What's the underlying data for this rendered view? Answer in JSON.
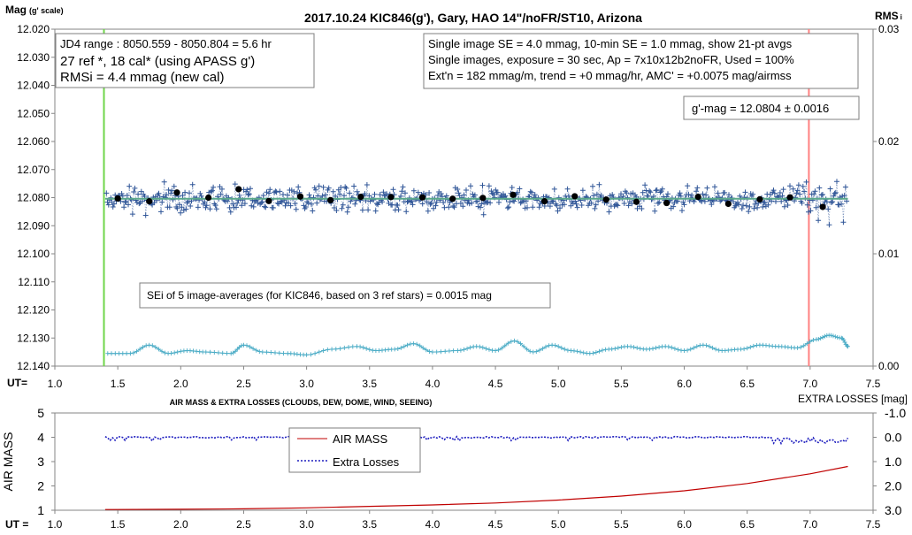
{
  "colors": {
    "axis": "#868686",
    "grid": "#d9d9d9",
    "lc_pts": "#2f5597",
    "mean_line": "#5aa88a",
    "avg_dots": "#000000",
    "sei_pts": "#4bacc6",
    "start_line": "#6fd64a",
    "end_line": "#ff8080",
    "airmass": "#c00000",
    "extra": "#1f1fbf"
  },
  "chart_data": [
    {
      "type": "scatter",
      "title": "2017.10.24  KIC846(g'),  Gary, HAO  14\"/noFR/ST10,  Arizona",
      "ylabel_left": "Mag",
      "ylabel_left_unit": "(g' scale)",
      "ylabel_right": "RMS",
      "ylabel_right_suffix": "i",
      "xlabel": "UT=",
      "xlim": [
        1.0,
        7.5
      ],
      "ylim_left": [
        12.14,
        12.02
      ],
      "ylim_right": [
        0.0,
        0.03
      ],
      "x_ticks": [
        "1.0",
        "1.5",
        "2.0",
        "2.5",
        "3.0",
        "3.5",
        "4.0",
        "4.5",
        "5.0",
        "5.5",
        "6.0",
        "6.5",
        "7.0",
        "7.5"
      ],
      "y_ticks_left": [
        "12.020",
        "12.030",
        "12.040",
        "12.050",
        "12.060",
        "12.070",
        "12.080",
        "12.090",
        "12.100",
        "12.110",
        "12.120",
        "12.130",
        "12.140"
      ],
      "y_ticks_right": [
        "0.03",
        "0.02",
        "0.01",
        "0.00"
      ],
      "grid": false,
      "vertical_markers": [
        {
          "x": 1.39,
          "color": "start_line"
        },
        {
          "x": 6.99,
          "color": "end_line"
        }
      ],
      "mean_level": 12.0804,
      "annotations": {
        "box_left": [
          "JD4 range : 8050.559 - 8050.804 =  5.6  hr",
          "27 ref *, 18 cal* (using APASS g')",
          "RMSi = 4.4 mmag (new cal)"
        ],
        "box_right": [
          "Single image SE = 4.0 mmag, 10-min SE = 1.0 mmag, show  21-pt avgs",
          "Single images, exposure = 30 sec, Ap = 7x10x12b2noFR,  Used = 100%",
          "Ext'n = 182 mmag/m, trend =  +0 mmag/hr, AMC' = +0.0075 mag/airmss"
        ],
        "gmag_box": "g'-mag = 12.0804 ± 0.0016",
        "sei_box": "SEi of 5 image-averages (for KIC846, based on 3 ref stars) = 0.0015  mag"
      },
      "series": [
        {
          "name": "21-pt avgs",
          "x": [
            1.5,
            1.75,
            1.97,
            2.22,
            2.46,
            2.7,
            2.95,
            3.19,
            3.43,
            3.67,
            3.92,
            4.16,
            4.4,
            4.64,
            4.89,
            5.13,
            5.38,
            5.62,
            5.86,
            6.11,
            6.35,
            6.6,
            6.84,
            7.1
          ],
          "y": [
            12.0803,
            12.0813,
            12.0782,
            12.08,
            12.077,
            12.0812,
            12.0796,
            12.0809,
            12.0797,
            12.0798,
            12.0799,
            12.0804,
            12.0801,
            12.079,
            12.0813,
            12.0795,
            12.0807,
            12.0815,
            12.0819,
            12.0797,
            12.0822,
            12.0806,
            12.0799,
            12.0833
          ]
        }
      ],
      "sei_curve": {
        "x": [
          1.42,
          1.6,
          1.75,
          1.9,
          2.05,
          2.2,
          2.4,
          2.5,
          2.65,
          2.85,
          3.0,
          3.2,
          3.4,
          3.55,
          3.7,
          3.85,
          4.0,
          4.2,
          4.35,
          4.5,
          4.65,
          4.8,
          4.95,
          5.1,
          5.25,
          5.4,
          5.55,
          5.7,
          5.85,
          6.0,
          6.15,
          6.3,
          6.45,
          6.6,
          6.75,
          6.9,
          7.05,
          7.15,
          7.25,
          7.3
        ],
        "y": [
          12.1355,
          12.1355,
          12.1325,
          12.1355,
          12.1345,
          12.135,
          12.1355,
          12.1325,
          12.135,
          12.1355,
          12.136,
          12.134,
          12.133,
          12.1345,
          12.134,
          12.132,
          12.135,
          12.1345,
          12.133,
          12.1345,
          12.131,
          12.135,
          12.1325,
          12.1345,
          12.1355,
          12.134,
          12.133,
          12.134,
          12.133,
          12.1345,
          12.1325,
          12.1345,
          12.134,
          12.1325,
          12.133,
          12.1335,
          12.1305,
          12.129,
          12.13,
          12.133
        ]
      }
    },
    {
      "type": "line",
      "title": "AIR MASS & EXTRA LOSSES (CLOUDS, DEW, DOME, WIND, SEEING)",
      "ylabel_left": "AIR MASS",
      "ylabel_right": "EXTRA LOSSES [mag]",
      "xlabel": "UT =",
      "xlim": [
        1.0,
        7.5
      ],
      "ylim_left": [
        1,
        5
      ],
      "ylim_right": [
        3.0,
        -1.0
      ],
      "x_ticks": [
        "1.0",
        "1.5",
        "2.0",
        "2.5",
        "3.0",
        "3.5",
        "4.0",
        "4.5",
        "5.0",
        "5.5",
        "6.0",
        "6.5",
        "7.0",
        "7.5"
      ],
      "y_ticks_left": [
        "5",
        "4",
        "3",
        "2",
        "1"
      ],
      "y_ticks_right": [
        "-1.0",
        "0.0",
        "1.0",
        "2.0",
        "3.0"
      ],
      "legend": "center",
      "series": [
        {
          "name": "AIR MASS",
          "x": [
            1.4,
            2.0,
            2.5,
            3.0,
            3.5,
            4.0,
            4.5,
            5.0,
            5.5,
            6.0,
            6.5,
            7.0,
            7.3
          ],
          "y": [
            1.03,
            1.04,
            1.06,
            1.1,
            1.16,
            1.22,
            1.3,
            1.42,
            1.58,
            1.8,
            2.1,
            2.5,
            2.8
          ]
        },
        {
          "name": "Extra Losses",
          "x": [
            1.4,
            7.3
          ],
          "y": [
            0.0,
            0.0
          ]
        }
      ]
    }
  ]
}
